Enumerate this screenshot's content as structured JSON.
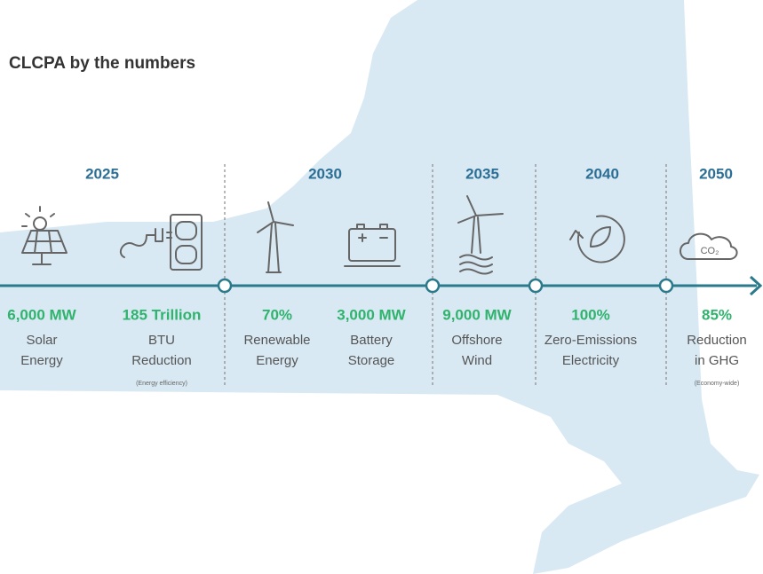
{
  "title": "CLCPA by the numbers",
  "years": [
    "2025",
    "2030",
    "2035",
    "2040",
    "2050"
  ],
  "items": [
    {
      "value": "6,000 MW",
      "label": [
        "Solar",
        "Energy"
      ]
    },
    {
      "value": "185 Trillion",
      "label": [
        "BTU",
        "Reduction"
      ],
      "note": "(Energy efficiency)"
    },
    {
      "value": "70%",
      "label": [
        "Renewable",
        "Energy"
      ]
    },
    {
      "value": "3,000 MW",
      "label": [
        "Battery",
        "Storage"
      ]
    },
    {
      "value": "9,000 MW",
      "label": [
        "Offshore",
        "Wind"
      ]
    },
    {
      "value": "100%",
      "label": [
        "Zero-Emissions",
        "Electricity"
      ]
    },
    {
      "value": "85%",
      "label": [
        "Reduction",
        "in GHG"
      ],
      "note": "(Economy-wide)"
    }
  ]
}
